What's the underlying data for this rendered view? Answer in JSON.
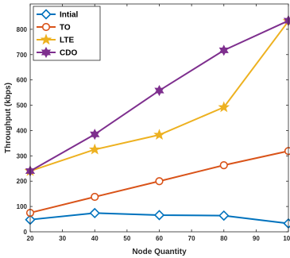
{
  "chart_data": {
    "type": "line",
    "title": "",
    "xlabel": "Node Quantity",
    "ylabel": "Throughput (kbps)",
    "xlim": [
      20,
      100
    ],
    "ylim": [
      0,
      900
    ],
    "xticks": [
      20,
      30,
      40,
      50,
      60,
      70,
      80,
      90,
      100
    ],
    "yticks": [
      0,
      100,
      200,
      300,
      400,
      500,
      600,
      700,
      800
    ],
    "grid": false,
    "legend": "top-left",
    "x": [
      20,
      40,
      60,
      80,
      100
    ],
    "series": [
      {
        "name": "Intial",
        "values": [
          48,
          74,
          66,
          64,
          33
        ],
        "color": "#0072BD",
        "marker": "diamond"
      },
      {
        "name": "TO",
        "values": [
          75,
          138,
          200,
          263,
          319
        ],
        "color": "#D95319",
        "marker": "circle"
      },
      {
        "name": "LTE",
        "values": [
          240,
          325,
          383,
          492,
          832
        ],
        "color": "#EDB120",
        "marker": "star"
      },
      {
        "name": "CDO",
        "values": [
          240,
          385,
          558,
          717,
          834
        ],
        "color": "#7E2F8E",
        "marker": "hexagram"
      }
    ]
  }
}
